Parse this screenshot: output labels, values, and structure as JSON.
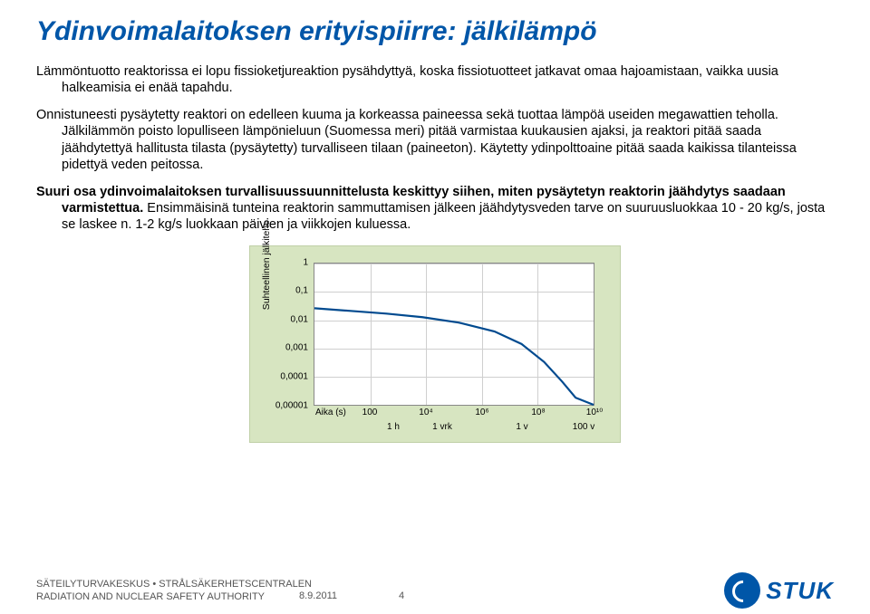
{
  "title": "Ydinvoimalaitoksen erityispiirre: jälkilämpö",
  "p1": "Lämmöntuotto reaktorissa ei lopu fissioketjureaktion pysähdyttyä, koska fissiotuotteet jatkavat omaa hajoamistaan, vaikka uusia halkeamisia ei enää tapahdu.",
  "p2": "Onnistuneesti pysäytetty reaktori on edelleen kuuma ja korkeassa paineessa sekä tuottaa lämpöä useiden megawattien teholla. Jälkilämmön poisto lopulliseen lämpönieluun (Suomessa meri) pitää varmistaa kuukausien ajaksi, ja reaktori pitää saada jäähdytettyä hallitusta tilasta (pysäytetty) turvalliseen tilaan (paineeton). Käytetty ydinpolttoaine pitää saada kaikissa tilanteissa pidettyä veden peitossa.",
  "p3a": "Suuri osa ydinvoimalaitoksen turvallisuussuunnittelusta keskittyy siihen, miten pysäytetyn reaktorin jäähdytys saadaan varmistettua.",
  "p3b": " Ensimmäisinä tunteina reaktorin sammuttamisen jälkeen jäähdytysveden tarve on suuruusluokkaa 10 - 20 kg/s, josta se laskee n. 1-2 kg/s luokkaan päivien ja viikkojen kuluessa.",
  "chart": {
    "type": "line-loglog",
    "background_color": "#d7e5c1",
    "plot_bg": "#ffffff",
    "grid_color": "#cfcfcf",
    "curve_color": "#004a8f",
    "curve_width": 2.2,
    "ylabel": "Suhteellinen jälkiteho",
    "yticks": [
      "1",
      "0,1",
      "0,01",
      "0,001",
      "0,0001",
      "0,00001"
    ],
    "xlabel": "Aika (s)",
    "xticks_top": [
      "100",
      "10⁴",
      "10⁶",
      "10⁸",
      "10¹⁰"
    ],
    "xticks_bot": [
      "1 h",
      "1 vrk",
      "1 v",
      "100 v"
    ],
    "xticks_bot_pos": [
      128,
      192,
      272,
      340
    ],
    "curve_points": [
      [
        0,
        50
      ],
      [
        40,
        53
      ],
      [
        80,
        56
      ],
      [
        120,
        60
      ],
      [
        160,
        66
      ],
      [
        200,
        76
      ],
      [
        230,
        90
      ],
      [
        255,
        110
      ],
      [
        275,
        132
      ],
      [
        290,
        150
      ],
      [
        310,
        158
      ]
    ]
  },
  "footer": {
    "line1": "SÄTEILYTURVAKESKUS • STRÅLSÄKERHETSCENTRALEN",
    "line2": "RADIATION AND NUCLEAR SAFETY AUTHORITY",
    "date": "8.9.2011",
    "page": "4",
    "logo_text": "STUK",
    "logo_color": "#0056a8"
  }
}
